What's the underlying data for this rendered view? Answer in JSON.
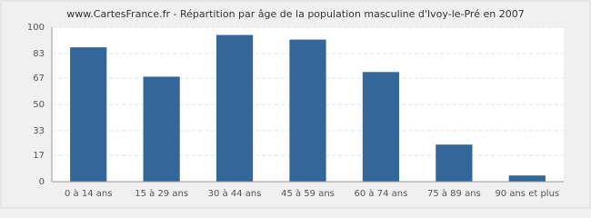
{
  "chart_data": {
    "type": "bar",
    "title": "www.CartesFrance.fr - Répartition par âge de la population masculine d'Ivoy-le-Pré en 2007",
    "categories": [
      "0 à 14 ans",
      "15 à 29 ans",
      "30 à 44 ans",
      "45 à 59 ans",
      "60 à 74 ans",
      "75 à 89 ans",
      "90 ans et plus"
    ],
    "values": [
      87,
      68,
      95,
      92,
      71,
      24,
      4
    ],
    "color": "#336699",
    "ylim": [
      0,
      100
    ],
    "yticks": [
      0,
      17,
      33,
      50,
      67,
      83,
      100
    ],
    "grid": true
  }
}
